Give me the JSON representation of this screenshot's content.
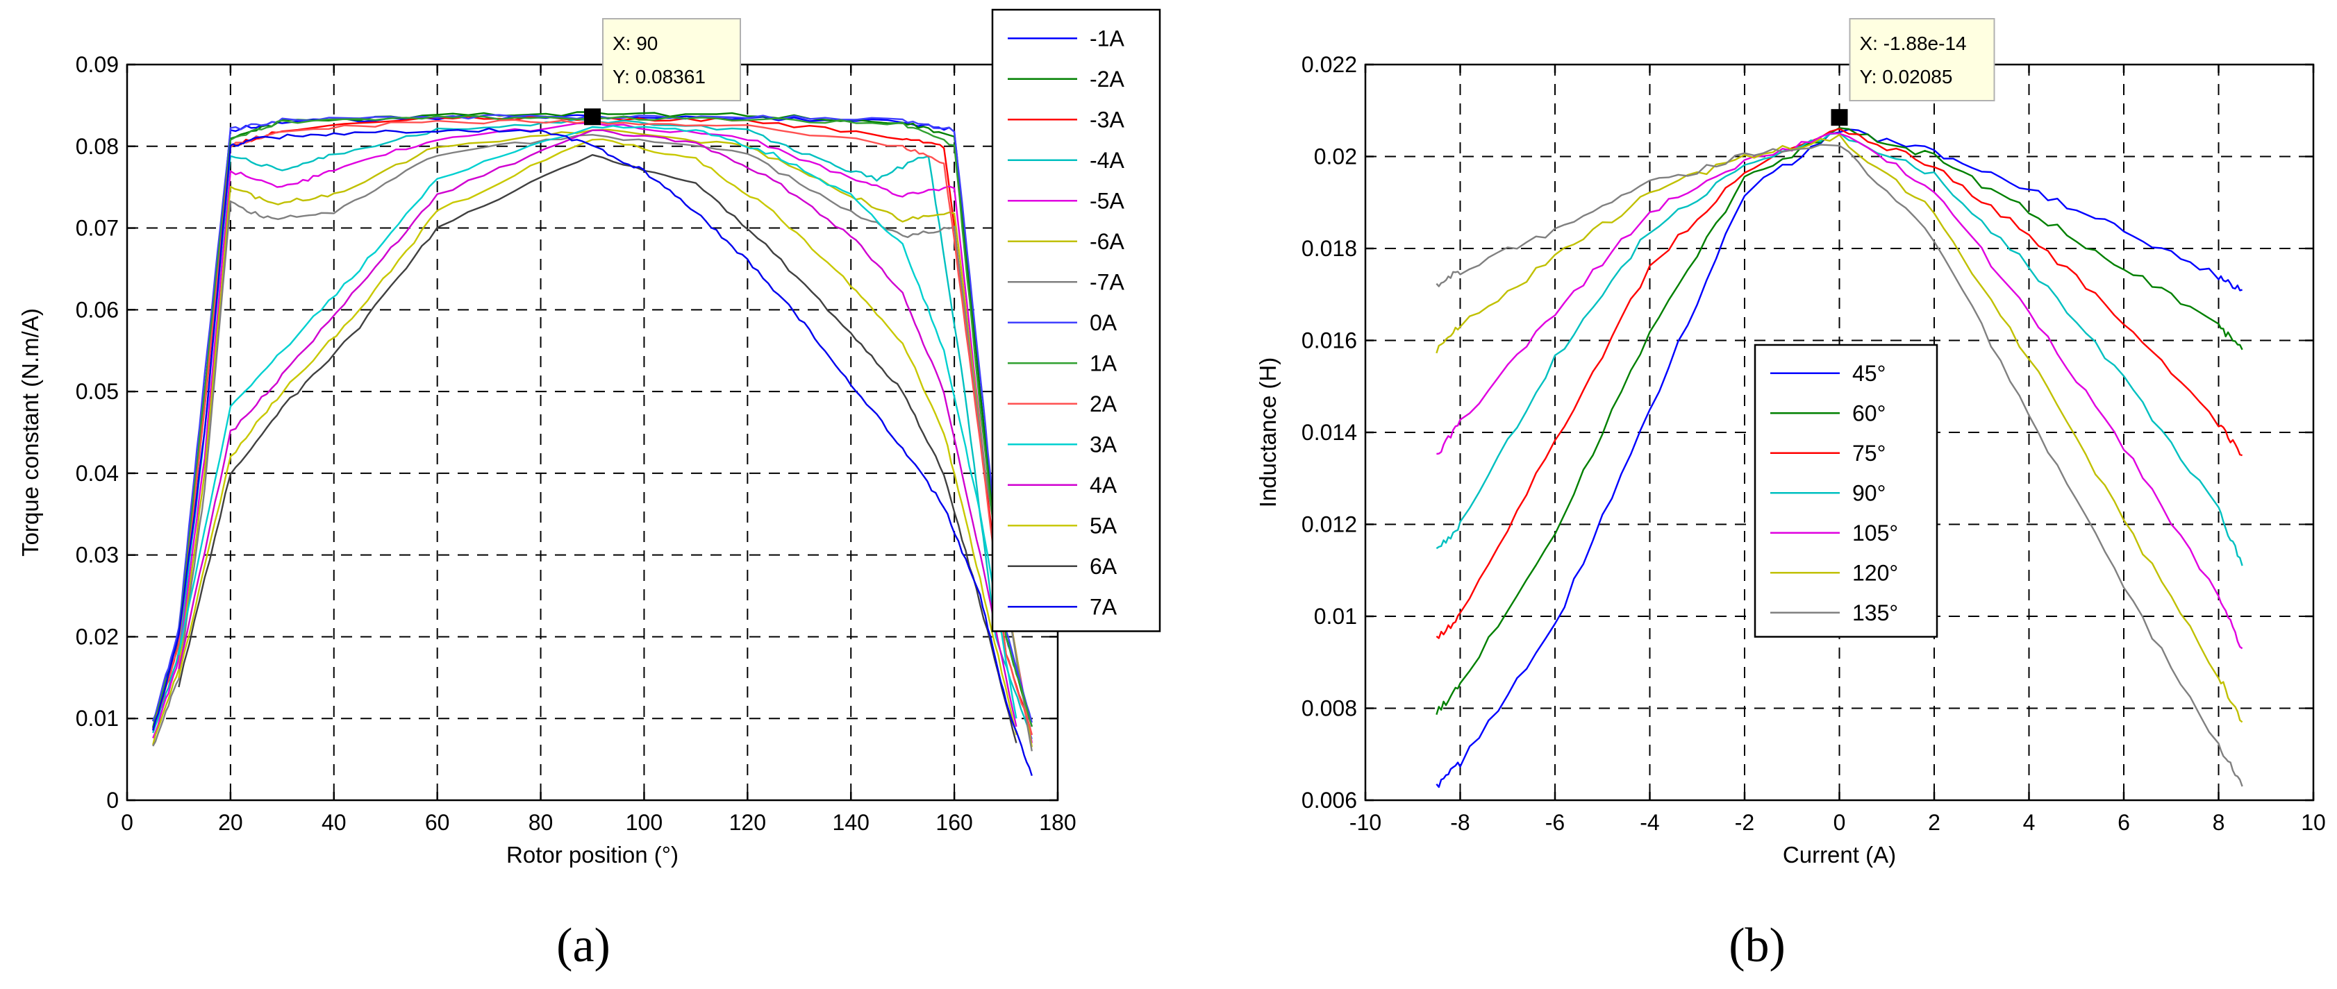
{
  "figure": {
    "caption_a": "(a)",
    "caption_b": "(b)"
  },
  "chart_data": [
    {
      "type": "line",
      "panel": "a",
      "title": "",
      "xlabel": "Rotor position (°)",
      "ylabel": "Torque constant (N.m/A)",
      "xlim": [
        0,
        180
      ],
      "ylim": [
        0,
        0.09
      ],
      "xticks": [
        0,
        20,
        40,
        60,
        80,
        100,
        120,
        140,
        160,
        180
      ],
      "yticks": [
        0,
        0.01,
        0.02,
        0.03,
        0.04,
        0.05,
        0.06,
        0.07,
        0.08,
        0.09
      ],
      "grid": true,
      "legend_position": "outside-right",
      "datatip": {
        "x_label": "X: 90",
        "y_label": "Y: 0.08361",
        "x": 90,
        "y": 0.08361
      },
      "series": [
        {
          "name": "-1A",
          "color": "#0000ff",
          "x": [
            5,
            10,
            15,
            20,
            30,
            60,
            90,
            120,
            150,
            160,
            165,
            170,
            175
          ],
          "y": [
            0.0095,
            0.02,
            0.05,
            0.082,
            0.083,
            0.0835,
            0.0836,
            0.0835,
            0.083,
            0.082,
            0.05,
            0.02,
            0.009
          ]
        },
        {
          "name": "-2A",
          "color": "#008000",
          "x": [
            5,
            10,
            15,
            20,
            30,
            60,
            90,
            120,
            150,
            160,
            165,
            170,
            175
          ],
          "y": [
            0.009,
            0.02,
            0.05,
            0.081,
            0.083,
            0.0838,
            0.084,
            0.0838,
            0.083,
            0.081,
            0.05,
            0.02,
            0.009
          ]
        },
        {
          "name": "-3A",
          "color": "#ff0000",
          "x": [
            5,
            10,
            15,
            20,
            30,
            60,
            90,
            120,
            150,
            158,
            165,
            170,
            175
          ],
          "y": [
            0.0085,
            0.019,
            0.048,
            0.08,
            0.082,
            0.0835,
            0.0834,
            0.0832,
            0.081,
            0.08,
            0.045,
            0.018,
            0.008
          ]
        },
        {
          "name": "-4A",
          "color": "#00c0c0",
          "x": [
            5,
            10,
            15,
            20,
            30,
            40,
            60,
            90,
            120,
            135,
            145,
            155,
            162,
            168,
            175
          ],
          "y": [
            0.008,
            0.018,
            0.045,
            0.079,
            0.077,
            0.079,
            0.082,
            0.0832,
            0.082,
            0.078,
            0.076,
            0.079,
            0.05,
            0.02,
            0.0075
          ]
        },
        {
          "name": "-5A",
          "color": "#e000e0",
          "x": [
            5,
            10,
            15,
            20,
            30,
            40,
            60,
            90,
            120,
            140,
            150,
            160,
            166,
            175
          ],
          "y": [
            0.0075,
            0.017,
            0.042,
            0.077,
            0.075,
            0.077,
            0.081,
            0.0828,
            0.081,
            0.076,
            0.074,
            0.075,
            0.04,
            0.007
          ]
        },
        {
          "name": "-6A",
          "color": "#c0c000",
          "x": [
            5,
            10,
            15,
            20,
            28,
            40,
            60,
            90,
            120,
            140,
            150,
            160,
            166,
            175
          ],
          "y": [
            0.007,
            0.016,
            0.04,
            0.075,
            0.073,
            0.074,
            0.08,
            0.082,
            0.08,
            0.074,
            0.071,
            0.072,
            0.04,
            0.0065
          ]
        },
        {
          "name": "-7A",
          "color": "#808080",
          "x": [
            5,
            10,
            15,
            20,
            28,
            40,
            60,
            90,
            120,
            140,
            150,
            160,
            166,
            175
          ],
          "y": [
            0.0065,
            0.015,
            0.038,
            0.073,
            0.071,
            0.072,
            0.079,
            0.0815,
            0.079,
            0.072,
            0.069,
            0.07,
            0.04,
            0.006
          ]
        },
        {
          "name": "0A",
          "color": "#4040ff",
          "x": [
            5,
            10,
            15,
            20,
            30,
            60,
            90,
            120,
            150,
            160,
            165,
            170,
            175
          ],
          "y": [
            0.0095,
            0.021,
            0.052,
            0.082,
            0.0832,
            0.0836,
            0.0836,
            0.0836,
            0.0832,
            0.082,
            0.052,
            0.021,
            0.0095
          ]
        },
        {
          "name": "1A",
          "color": "#30a030",
          "x": [
            5,
            10,
            15,
            20,
            30,
            60,
            90,
            120,
            150,
            160,
            165,
            170,
            175
          ],
          "y": [
            0.009,
            0.02,
            0.05,
            0.081,
            0.083,
            0.0835,
            0.0835,
            0.0834,
            0.0828,
            0.08,
            0.048,
            0.02,
            0.009
          ]
        },
        {
          "name": "2A",
          "color": "#ff5050",
          "x": [
            5,
            10,
            15,
            20,
            30,
            60,
            90,
            120,
            150,
            158,
            165,
            170,
            175
          ],
          "y": [
            0.0085,
            0.019,
            0.048,
            0.08,
            0.082,
            0.083,
            0.083,
            0.0825,
            0.08,
            0.078,
            0.044,
            0.018,
            0.008
          ]
        },
        {
          "name": "3A",
          "color": "#00d0d0",
          "x": [
            10,
            20,
            30,
            45,
            60,
            90,
            110,
            125,
            140,
            150,
            158,
            165,
            172
          ],
          "y": [
            0.018,
            0.048,
            0.055,
            0.065,
            0.076,
            0.0825,
            0.082,
            0.079,
            0.074,
            0.068,
            0.055,
            0.035,
            0.01
          ]
        },
        {
          "name": "4A",
          "color": "#d000d0",
          "x": [
            10,
            20,
            30,
            45,
            60,
            90,
            110,
            125,
            140,
            150,
            158,
            165,
            172
          ],
          "y": [
            0.016,
            0.045,
            0.052,
            0.063,
            0.074,
            0.082,
            0.0805,
            0.076,
            0.069,
            0.062,
            0.05,
            0.03,
            0.009
          ]
        },
        {
          "name": "5A",
          "color": "#c8c800",
          "x": [
            10,
            20,
            30,
            45,
            60,
            90,
            110,
            125,
            140,
            150,
            158,
            165,
            172
          ],
          "y": [
            0.015,
            0.042,
            0.05,
            0.06,
            0.072,
            0.081,
            0.0785,
            0.072,
            0.063,
            0.056,
            0.045,
            0.027,
            0.008
          ]
        },
        {
          "name": "6A",
          "color": "#404040",
          "x": [
            10,
            20,
            30,
            45,
            60,
            90,
            110,
            125,
            140,
            150,
            158,
            165,
            172
          ],
          "y": [
            0.014,
            0.04,
            0.048,
            0.058,
            0.07,
            0.079,
            0.0755,
            0.067,
            0.057,
            0.05,
            0.04,
            0.024,
            0.007
          ]
        },
        {
          "name": "7A",
          "color": "#0000ee",
          "x": [
            5,
            10,
            15,
            20,
            25,
            40,
            60,
            80,
            90,
            100,
            110,
            120,
            130,
            140,
            150,
            158,
            165,
            170,
            175
          ],
          "y": [
            0.0085,
            0.02,
            0.045,
            0.08,
            0.081,
            0.0815,
            0.082,
            0.082,
            0.08,
            0.077,
            0.072,
            0.066,
            0.059,
            0.051,
            0.043,
            0.036,
            0.025,
            0.012,
            0.003
          ]
        }
      ]
    },
    {
      "type": "line",
      "panel": "b",
      "title": "",
      "xlabel": "Current (A)",
      "ylabel": "Inductance (H)",
      "xlim": [
        -10,
        10
      ],
      "ylim": [
        0.006,
        0.022
      ],
      "xticks": [
        -10,
        -8,
        -6,
        -4,
        -2,
        0,
        2,
        4,
        6,
        8,
        10
      ],
      "yticks": [
        0.006,
        0.008,
        0.01,
        0.012,
        0.014,
        0.016,
        0.018,
        0.02,
        0.022
      ],
      "grid": true,
      "legend_position": "center",
      "datatip": {
        "x_label": "X: -1.88e-14",
        "y_label": "Y: 0.02085",
        "x": 0,
        "y": 0.02085
      },
      "series": [
        {
          "name": "45°",
          "color": "#0000ff",
          "x": [
            -8.5,
            -8,
            -6,
            -4,
            -2,
            0,
            2,
            4,
            6,
            8,
            8.5
          ],
          "y": [
            0.0063,
            0.0068,
            0.0098,
            0.0145,
            0.0192,
            0.0206,
            0.0201,
            0.0193,
            0.0184,
            0.0174,
            0.0171
          ]
        },
        {
          "name": "60°",
          "color": "#008000",
          "x": [
            -8.5,
            -8,
            -6,
            -4,
            -2,
            0,
            2,
            4,
            6,
            8,
            8.5
          ],
          "y": [
            0.0079,
            0.0085,
            0.0118,
            0.0162,
            0.0195,
            0.0206,
            0.02,
            0.0188,
            0.0176,
            0.0163,
            0.0158
          ]
        },
        {
          "name": "75°",
          "color": "#ff0000",
          "x": [
            -8.5,
            -8,
            -6,
            -4,
            -2,
            0,
            2,
            4,
            6,
            8,
            8.5
          ],
          "y": [
            0.0095,
            0.01,
            0.0138,
            0.0176,
            0.0197,
            0.0206,
            0.0198,
            0.0183,
            0.0164,
            0.0142,
            0.0135
          ]
        },
        {
          "name": "90°",
          "color": "#00c0c0",
          "x": [
            -8.5,
            -8,
            -6,
            -4,
            -2,
            0,
            2,
            4,
            6,
            8,
            8.5
          ],
          "y": [
            0.0114,
            0.012,
            0.0156,
            0.0184,
            0.0198,
            0.0205,
            0.0196,
            0.0176,
            0.0152,
            0.0123,
            0.0111
          ]
        },
        {
          "name": "105°",
          "color": "#e000e0",
          "x": [
            -8.5,
            -8,
            -6,
            -4,
            -2,
            0,
            2,
            4,
            6,
            8,
            8.5
          ],
          "y": [
            0.0135,
            0.0142,
            0.0166,
            0.0188,
            0.0199,
            0.0205,
            0.0193,
            0.0166,
            0.0137,
            0.0104,
            0.0093
          ]
        },
        {
          "name": "120°",
          "color": "#c0c000",
          "x": [
            -8.5,
            -8,
            -6,
            -4,
            -2,
            0,
            2,
            4,
            6,
            8,
            8.5
          ],
          "y": [
            0.0158,
            0.0163,
            0.0178,
            0.0192,
            0.02,
            0.0204,
            0.0188,
            0.0156,
            0.0121,
            0.0087,
            0.0077
          ]
        },
        {
          "name": "135°",
          "color": "#808080",
          "x": [
            -8.5,
            -8,
            -6,
            -4,
            -2,
            0,
            2,
            4,
            6,
            8,
            8.5
          ],
          "y": [
            0.0172,
            0.0175,
            0.0184,
            0.0194,
            0.02,
            0.0203,
            0.0182,
            0.0144,
            0.0106,
            0.0072,
            0.0063
          ]
        }
      ]
    }
  ]
}
